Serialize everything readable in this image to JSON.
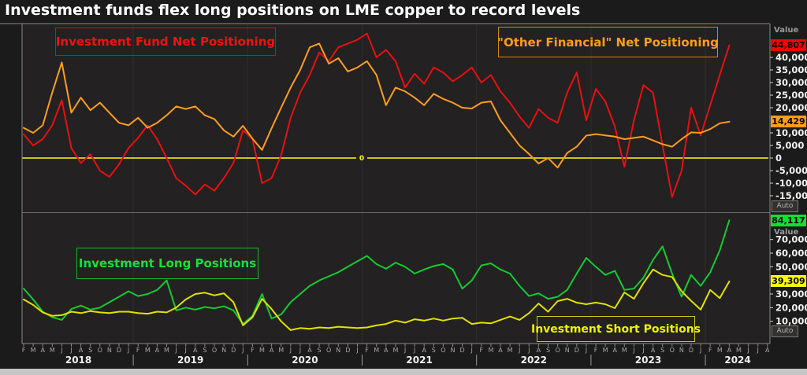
{
  "title": "Investment funds flex long positions on LME copper to record levels",
  "colors": {
    "background": "#1c1b1b",
    "plot_background": "#232121",
    "red_series": "#e81010",
    "orange_series": "#ff9d1c",
    "green_series": "#12cc33",
    "yellow_series": "#e2e200",
    "zero_line": "#ffff00",
    "badge_red": "#ff0000",
    "badge_orange": "#ff9d1c",
    "badge_green": "#12e02e",
    "badge_yellow": "#ffff00"
  },
  "axis": {
    "value_label": "Value",
    "auto_label": "Auto",
    "top_ticks": [
      {
        "label": "40,000",
        "value": 40000
      },
      {
        "label": "35,000",
        "value": 35000
      },
      {
        "label": "30,000",
        "value": 30000
      },
      {
        "label": "25,000",
        "value": 25000
      },
      {
        "label": "20,000",
        "value": 20000
      },
      {
        "label": "10,000",
        "value": 10000
      },
      {
        "label": "5,000",
        "value": 5000
      },
      {
        "label": "0",
        "value": 0
      },
      {
        "label": "-5,000",
        "value": -5000
      },
      {
        "label": "-10,000",
        "value": -10000
      },
      {
        "label": "-15,000",
        "value": -15000
      }
    ],
    "bottom_ticks": [
      {
        "label": "70,000",
        "value": 70000
      },
      {
        "label": "60,000",
        "value": 60000
      },
      {
        "label": "50,000",
        "value": 50000
      },
      {
        "label": "30,000",
        "value": 30000
      },
      {
        "label": "20,000",
        "value": 20000
      },
      {
        "label": "10,000",
        "value": 10000
      }
    ]
  },
  "badges": [
    {
      "text": "44,807",
      "value": 44807,
      "panel": 0,
      "color": "#ff0000"
    },
    {
      "text": "14,429",
      "value": 14429,
      "panel": 0,
      "color": "#ff9d1c"
    },
    {
      "text": "84,117",
      "value": 84117,
      "panel": 1,
      "color": "#12e02e"
    },
    {
      "text": "39,309",
      "value": 39309,
      "panel": 1,
      "color": "#ffff00"
    }
  ],
  "zero_line_label": "0",
  "x_axis": {
    "month_letters": [
      "F",
      "M",
      "A",
      "M",
      "J",
      "J",
      "A",
      "S",
      "O",
      "N",
      "D",
      "J",
      "F",
      "M",
      "A",
      "M",
      "J",
      "J",
      "A",
      "S",
      "O",
      "N",
      "D",
      "J",
      "F",
      "M",
      "A",
      "M",
      "J",
      "J",
      "A",
      "S",
      "O",
      "N",
      "D",
      "J",
      "F",
      "M",
      "A",
      "M",
      "J",
      "J",
      "A",
      "S",
      "O",
      "N",
      "D",
      "J",
      "F",
      "M",
      "A",
      "M",
      "J",
      "J",
      "A",
      "S",
      "O",
      "N",
      "D",
      "J",
      "F",
      "M",
      "A",
      "M",
      "J",
      "J",
      "A",
      "S",
      "O",
      "N",
      "D",
      "J",
      "F",
      "M",
      "A",
      "M",
      "J",
      "J",
      "A"
    ],
    "years": [
      "2018",
      "2019",
      "2020",
      "2021",
      "2022",
      "2023",
      "2024"
    ]
  },
  "chart_data": [
    {
      "type": "line",
      "panel": "top",
      "x_start": "2018-02",
      "x_end": "2024-04",
      "frequency": "monthly",
      "ylim": [
        -21500,
        53000
      ],
      "grid": "vertical-year-lines",
      "zero_line": true,
      "series": [
        {
          "name": "Investment Fund Net Positioning",
          "color": "#e81010",
          "last_value": 44807,
          "values": [
            9500,
            5000,
            7500,
            13000,
            23000,
            4000,
            -2000,
            1500,
            -5000,
            -7500,
            -2500,
            4000,
            8000,
            13000,
            7500,
            0,
            -8000,
            -11000,
            -14500,
            -10500,
            -13000,
            -8000,
            -2000,
            11000,
            7500,
            -10000,
            -8000,
            1000,
            16000,
            26000,
            33000,
            42000,
            38500,
            44000,
            45500,
            47000,
            49500,
            40000,
            43000,
            38500,
            28000,
            33500,
            29500,
            36000,
            34000,
            30500,
            33000,
            36000,
            30000,
            33000,
            26500,
            22000,
            16500,
            12000,
            19500,
            16000,
            14000,
            26000,
            34000,
            15000,
            27500,
            22500,
            12500,
            -3500,
            15000,
            29000,
            26000,
            5000,
            -15500,
            -5000,
            20000,
            9000,
            21000,
            33000,
            44807
          ]
        },
        {
          "name": "\"Other Financial\" Net Positioning",
          "color": "#ff9d1c",
          "last_value": 14429,
          "values": [
            12000,
            10000,
            13000,
            26000,
            38000,
            18000,
            24000,
            19000,
            22000,
            18000,
            14000,
            13000,
            16000,
            12000,
            14000,
            17000,
            20500,
            19500,
            20500,
            17000,
            15500,
            11000,
            8500,
            12800,
            7700,
            3200,
            11800,
            20000,
            28000,
            35000,
            44000,
            45500,
            37500,
            39700,
            34400,
            36000,
            38500,
            33000,
            21000,
            28000,
            26500,
            24000,
            21000,
            25500,
            23500,
            22000,
            20000,
            19700,
            22000,
            22500,
            15000,
            10000,
            5000,
            1600,
            -2200,
            0,
            -3800,
            2000,
            4500,
            8900,
            9500,
            9000,
            8500,
            7500,
            8000,
            8500,
            7000,
            5500,
            4500,
            7500,
            10200,
            10000,
            11500,
            13800,
            14429
          ]
        }
      ]
    },
    {
      "type": "line",
      "panel": "bottom",
      "x_start": "2018-02",
      "x_end": "2024-04",
      "frequency": "monthly",
      "ylim": [
        -5800,
        89400
      ],
      "grid": "vertical-year-lines",
      "zero_line": false,
      "series": [
        {
          "name": "Investment Long Positions",
          "color": "#12cc33",
          "last_value": 84117,
          "values": [
            34000,
            26000,
            17000,
            13000,
            11000,
            19000,
            21500,
            18500,
            20000,
            24000,
            28000,
            32000,
            28500,
            30000,
            33000,
            40000,
            18000,
            20000,
            18500,
            20500,
            19500,
            21000,
            18000,
            8000,
            14000,
            30000,
            12000,
            15000,
            24000,
            30000,
            36000,
            40000,
            43000,
            46000,
            50000,
            54000,
            58000,
            52000,
            48500,
            53000,
            50000,
            45000,
            48000,
            50500,
            52000,
            48000,
            34000,
            40000,
            51000,
            52500,
            48000,
            45000,
            36000,
            28500,
            30500,
            26500,
            28000,
            33000,
            45000,
            56500,
            50000,
            44000,
            47000,
            33000,
            34000,
            42000,
            55000,
            65000,
            45000,
            28000,
            44000,
            36000,
            46000,
            62000,
            84117
          ]
        },
        {
          "name": "Investment Short Positions",
          "color": "#e2e200",
          "last_value": 39309,
          "values": [
            26000,
            22000,
            16500,
            14000,
            14500,
            17000,
            16000,
            17500,
            16500,
            16000,
            17000,
            17000,
            16000,
            15500,
            17000,
            16500,
            20000,
            26000,
            30000,
            31000,
            29000,
            30500,
            24000,
            7000,
            13000,
            26500,
            19000,
            10000,
            3500,
            5000,
            4500,
            5500,
            5000,
            6000,
            5500,
            5000,
            5500,
            7000,
            8000,
            10500,
            9000,
            11500,
            10500,
            12000,
            10500,
            12000,
            12500,
            8000,
            9000,
            8500,
            11000,
            13500,
            11000,
            16000,
            23000,
            17000,
            24800,
            26500,
            23700,
            22500,
            23700,
            22500,
            19600,
            31200,
            26500,
            38000,
            48000,
            44000,
            42500,
            32000,
            25000,
            18500,
            33000,
            27000,
            39309
          ]
        }
      ]
    }
  ]
}
